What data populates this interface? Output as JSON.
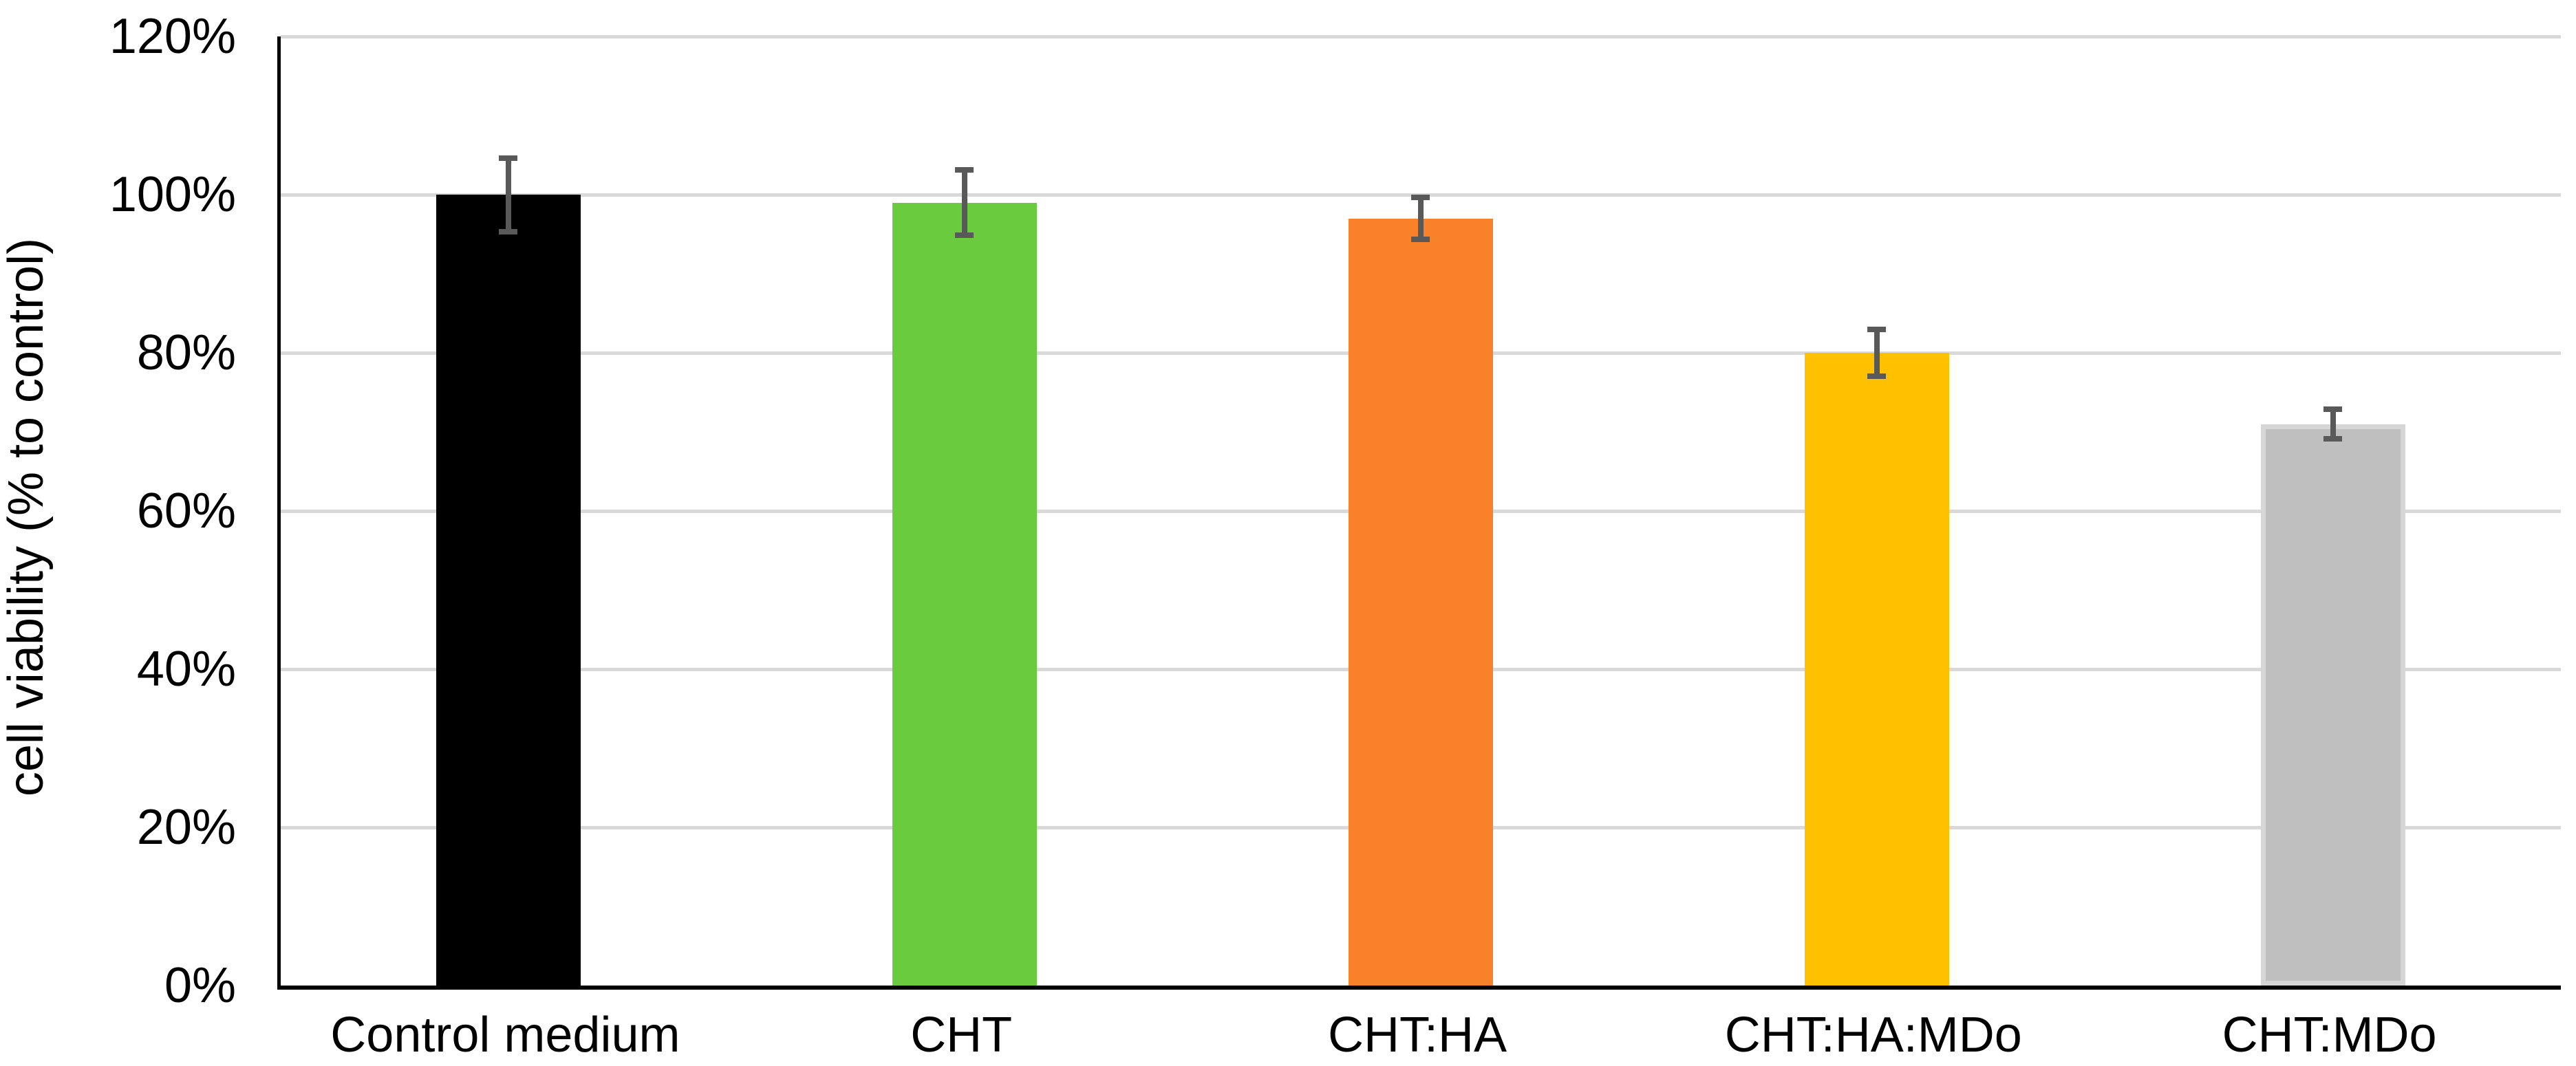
{
  "chart_data": {
    "type": "bar",
    "title": "",
    "xlabel": "",
    "ylabel": "cell viability (% to control)",
    "categories": [
      "Control medium",
      "CHT",
      "CHT:HA",
      "CHT:HA:MDo",
      "CHT:MDo"
    ],
    "values": [
      100,
      99,
      97,
      80,
      71
    ],
    "errors": [
      5,
      4.5,
      3,
      3.3,
      2.2
    ],
    "value_unit": "%",
    "bar_colors": [
      "#000000",
      "#6BCB3E",
      "#F8812A",
      "#FFC000",
      "#BFBFBF"
    ],
    "gray_bar_border_color": "#D6D6D6",
    "ylim": [
      0,
      120
    ],
    "ytick_step": 20,
    "ytick_labels": [
      "0%",
      "20%",
      "40%",
      "60%",
      "80%",
      "100%",
      "120%"
    ],
    "grid": "horizontal",
    "gridline_color": "#D9D9D9",
    "error_bar_color": "#595959",
    "axis_color": "#000000",
    "legend": "none",
    "background_color": "#FFFFFF"
  }
}
